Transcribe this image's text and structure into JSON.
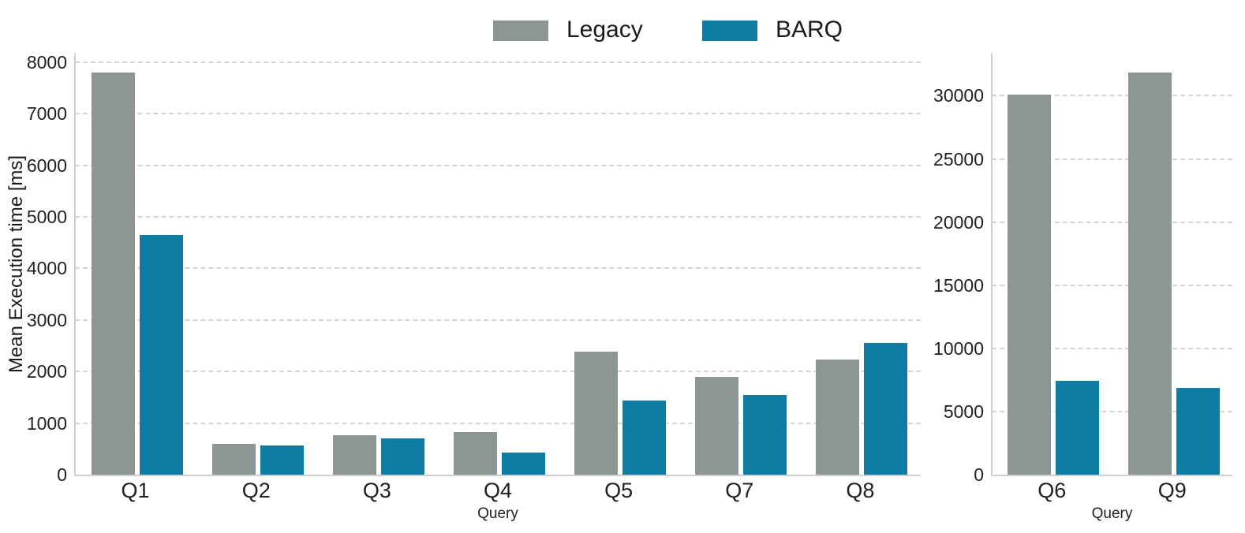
{
  "y_axis_label": "Mean Execution time [ms]",
  "legend": {
    "items": [
      {
        "label": "Legacy",
        "color": "#8C9695"
      },
      {
        "label": "BARQ",
        "color": "#0E7BA2"
      }
    ]
  },
  "chart_data": [
    {
      "type": "bar",
      "panel": "left",
      "title": "",
      "xlabel": "Query",
      "ylabel": "Mean Execution time [ms]",
      "categories": [
        "Q1",
        "Q2",
        "Q3",
        "Q4",
        "Q5",
        "Q7",
        "Q8"
      ],
      "series": [
        {
          "name": "Legacy",
          "values": [
            7800,
            600,
            760,
            820,
            2390,
            1890,
            2230
          ]
        },
        {
          "name": "BARQ",
          "values": [
            4650,
            570,
            700,
            430,
            1430,
            1540,
            2550
          ]
        }
      ],
      "units": "ms",
      "ylim": [
        0,
        8180
      ],
      "yticks": [
        0,
        1000,
        2000,
        3000,
        4000,
        5000,
        6000,
        7000,
        8000
      ],
      "grid": "horizontal-dashed",
      "legend_position": "top-center-of-figure"
    },
    {
      "type": "bar",
      "panel": "right",
      "title": "",
      "xlabel": "Query",
      "ylabel": "",
      "categories": [
        "Q6",
        "Q9"
      ],
      "series": [
        {
          "name": "Legacy",
          "values": [
            30100,
            31850
          ]
        },
        {
          "name": "BARQ",
          "values": [
            7400,
            6840
          ]
        }
      ],
      "units": "ms",
      "ylim": [
        0,
        33400
      ],
      "yticks": [
        0,
        5000,
        10000,
        15000,
        20000,
        25000,
        30000
      ],
      "grid": "horizontal-dashed",
      "legend_position": "top-center-of-figure"
    }
  ]
}
